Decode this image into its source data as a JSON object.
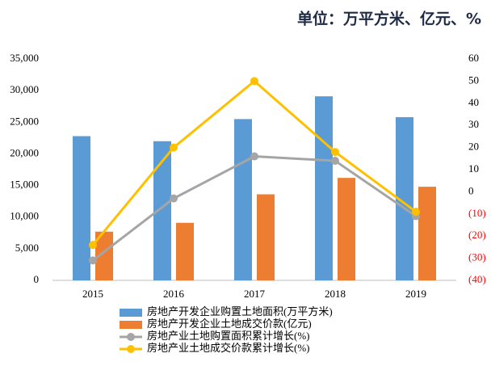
{
  "chart_data": {
    "type": "bar",
    "title": "单位：万平方米、亿元、%",
    "categories": [
      "2015",
      "2016",
      "2017",
      "2018",
      "2019"
    ],
    "series": [
      {
        "name": "房地产开发企业购置土地面积(万平方米)",
        "color": "#5b9bd5",
        "type": "bar",
        "values": [
          22800,
          22000,
          25500,
          29100,
          25800
        ]
      },
      {
        "name": "房地产开发企业土地成交价款(亿元)",
        "color": "#ed7d31",
        "type": "bar",
        "values": [
          7700,
          9100,
          13600,
          16200,
          14800
        ]
      },
      {
        "name": "房地产业土地购置面积累计增长(%)",
        "color": "#a5a5a5",
        "type": "line",
        "axis": "y2",
        "values": [
          -31,
          -3,
          16,
          14,
          -11
        ]
      },
      {
        "name": "房地产业土地成交价款累计增长(%)",
        "color": "#ffc000",
        "type": "line",
        "axis": "y2",
        "values": [
          -24,
          20,
          50,
          18,
          -9
        ]
      }
    ],
    "ylim": [
      0,
      35000
    ],
    "yticks": [
      0,
      {
        "value": 5000,
        "label": "5,000"
      },
      {
        "value": 10000,
        "label": "10,000"
      },
      {
        "value": 15000,
        "label": "15,000"
      },
      {
        "value": 20000,
        "label": "20,000"
      },
      {
        "value": 25000,
        "label": "25,000"
      },
      {
        "value": 30000,
        "label": "30,000"
      },
      {
        "value": 35000,
        "label": "35,000"
      }
    ],
    "y2lim": [
      -40,
      60
    ],
    "y2ticks": [
      {
        "value": -40,
        "label": "(40)"
      },
      {
        "value": -30,
        "label": "(30)"
      },
      {
        "value": -20,
        "label": "(20)"
      },
      {
        "value": -10,
        "label": "(10)"
      },
      0,
      10,
      20,
      30,
      40,
      50,
      60
    ],
    "y2_negative_color": "#ff0000",
    "grid": false,
    "legend": "bottom"
  }
}
